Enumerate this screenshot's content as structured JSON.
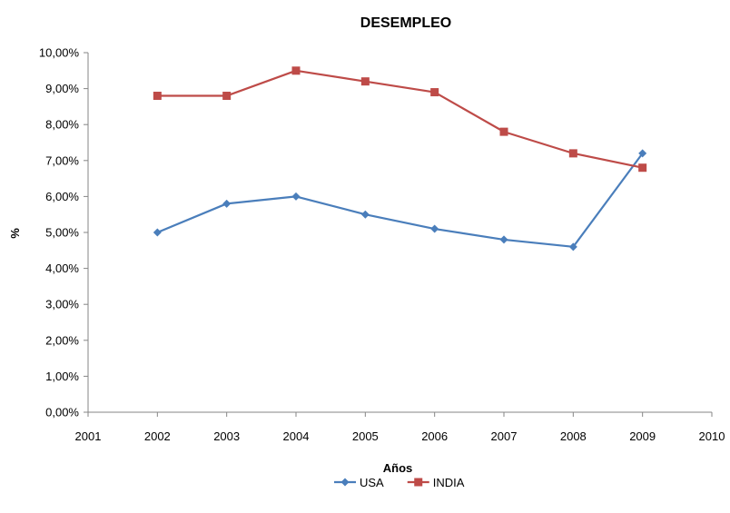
{
  "chart_data": {
    "type": "line",
    "title": "DESEMPLEO",
    "xlabel": "Años",
    "ylabel": "%",
    "xlim": [
      2001,
      2010
    ],
    "ylim": [
      0,
      10
    ],
    "x_ticks": [
      "2001",
      "2002",
      "2003",
      "2004",
      "2005",
      "2006",
      "2007",
      "2008",
      "2009",
      "2010"
    ],
    "y_ticks": [
      "0,00%",
      "1,00%",
      "2,00%",
      "3,00%",
      "4,00%",
      "5,00%",
      "6,00%",
      "7,00%",
      "8,00%",
      "9,00%",
      "10,00%"
    ],
    "grid": false,
    "legend_position": "bottom",
    "x": [
      2002,
      2003,
      2004,
      2005,
      2006,
      2007,
      2008,
      2009
    ],
    "series": [
      {
        "name": "USA",
        "color": "#4a7ebb",
        "marker": "diamond",
        "values": [
          5.0,
          5.8,
          6.0,
          5.5,
          5.1,
          4.8,
          4.6,
          7.2
        ]
      },
      {
        "name": "INDIA",
        "color": "#be4b48",
        "marker": "square",
        "values": [
          8.8,
          8.8,
          9.5,
          9.2,
          8.9,
          7.8,
          7.2,
          6.8
        ]
      }
    ]
  }
}
